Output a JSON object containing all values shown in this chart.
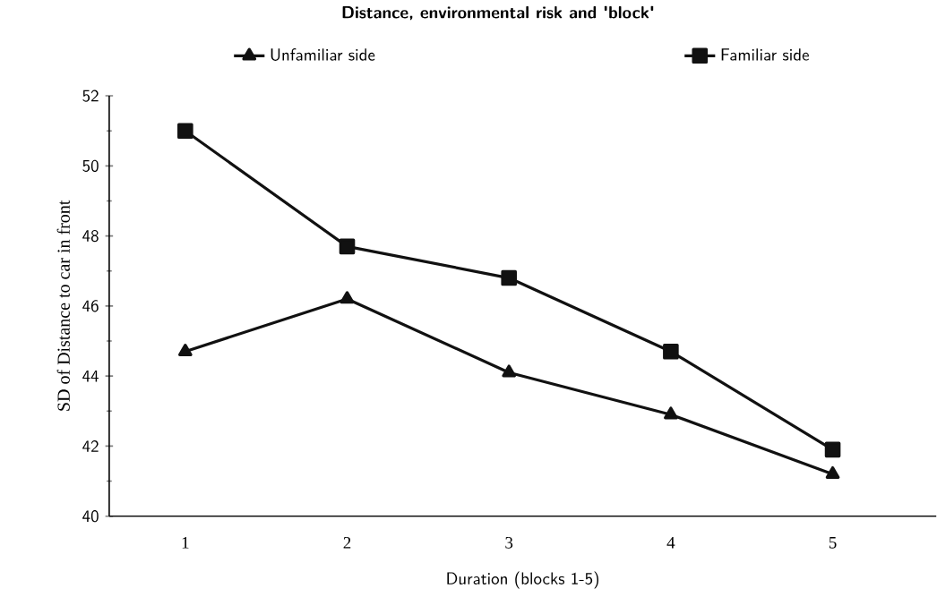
{
  "chart_data": {
    "type": "line",
    "title": "Distance, environmental risk and 'block'",
    "xlabel": "Duration (blocks 1-5)",
    "ylabel": "SD of Distance to car in front",
    "x": [
      1,
      2,
      3,
      4,
      5
    ],
    "xlim": [
      0.53,
      5.64
    ],
    "xticks": [
      1,
      2,
      3,
      4,
      5
    ],
    "ylim": [
      40,
      52
    ],
    "yticks": [
      40,
      42,
      44,
      46,
      48,
      50,
      52
    ],
    "legend": "top",
    "line_style": "solid",
    "series": [
      {
        "name": "Unfamiliar side",
        "color": "#111111",
        "marker": "triangle",
        "values": [
          44.7,
          46.2,
          44.1,
          42.9,
          41.2
        ]
      },
      {
        "name": "Familiar side",
        "color": "#111111",
        "marker": "square",
        "values": [
          51.0,
          47.7,
          46.8,
          44.7,
          41.9
        ]
      }
    ]
  }
}
